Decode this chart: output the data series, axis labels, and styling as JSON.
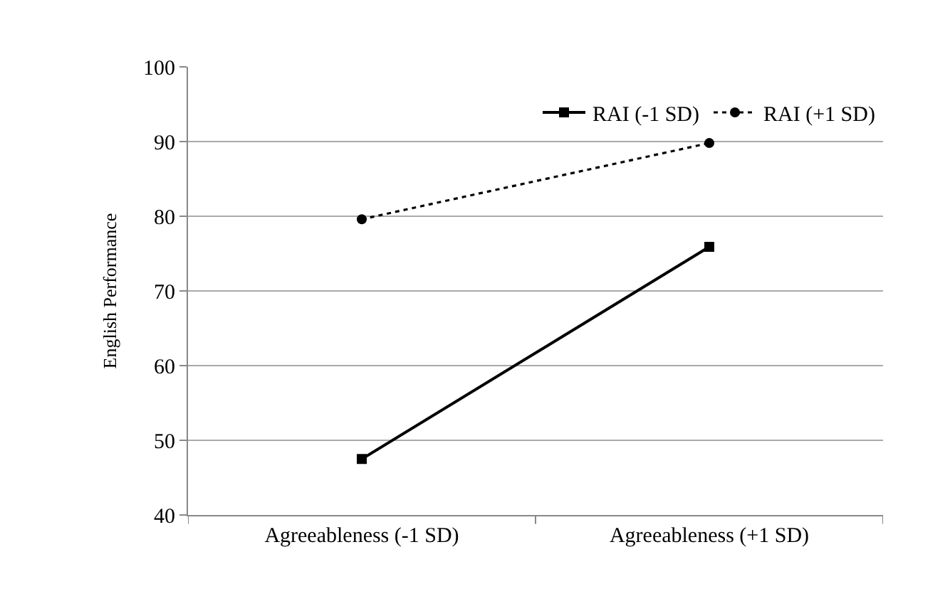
{
  "chart_data": {
    "type": "line",
    "ylabel": "English Performance",
    "categories": [
      "Agreeableness (-1 SD)",
      "Agreeableness (+1 SD)"
    ],
    "series": [
      {
        "name": "RAI (-1 SD)",
        "color": "#000000",
        "values": [
          47.5,
          75.9
        ],
        "marker": "square",
        "line_style": "solid"
      },
      {
        "name": "RAI (+1 SD)",
        "color": "#000000",
        "values": [
          79.6,
          89.8
        ],
        "marker": "circle",
        "line_style": "dotted"
      }
    ],
    "ylim": [
      40,
      100
    ],
    "yticks": [
      40,
      50,
      60,
      70,
      80,
      90,
      100
    ],
    "grid": "y",
    "legend": "top right"
  }
}
